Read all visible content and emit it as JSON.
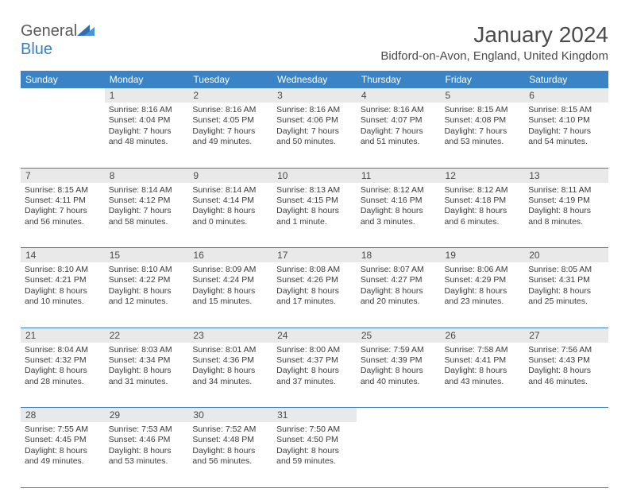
{
  "brand": {
    "name_gray": "General",
    "name_blue": "Blue"
  },
  "title": "January 2024",
  "location": "Bidford-on-Avon, England, United Kingdom",
  "colors": {
    "header_bg": "#3a84c6",
    "header_text": "#ffffff",
    "daynum_bg": "#e9e9e9",
    "border": "#3a7fb8",
    "text": "#3a3a3a",
    "logo_gray": "#5a5a5a",
    "logo_blue": "#3a7fc4"
  },
  "dow": [
    "Sunday",
    "Monday",
    "Tuesday",
    "Wednesday",
    "Thursday",
    "Friday",
    "Saturday"
  ],
  "weeks": [
    [
      {
        "num": "",
        "lines": []
      },
      {
        "num": "1",
        "lines": [
          "Sunrise: 8:16 AM",
          "Sunset: 4:04 PM",
          "Daylight: 7 hours",
          "and 48 minutes."
        ]
      },
      {
        "num": "2",
        "lines": [
          "Sunrise: 8:16 AM",
          "Sunset: 4:05 PM",
          "Daylight: 7 hours",
          "and 49 minutes."
        ]
      },
      {
        "num": "3",
        "lines": [
          "Sunrise: 8:16 AM",
          "Sunset: 4:06 PM",
          "Daylight: 7 hours",
          "and 50 minutes."
        ]
      },
      {
        "num": "4",
        "lines": [
          "Sunrise: 8:16 AM",
          "Sunset: 4:07 PM",
          "Daylight: 7 hours",
          "and 51 minutes."
        ]
      },
      {
        "num": "5",
        "lines": [
          "Sunrise: 8:15 AM",
          "Sunset: 4:08 PM",
          "Daylight: 7 hours",
          "and 53 minutes."
        ]
      },
      {
        "num": "6",
        "lines": [
          "Sunrise: 8:15 AM",
          "Sunset: 4:10 PM",
          "Daylight: 7 hours",
          "and 54 minutes."
        ]
      }
    ],
    [
      {
        "num": "7",
        "lines": [
          "Sunrise: 8:15 AM",
          "Sunset: 4:11 PM",
          "Daylight: 7 hours",
          "and 56 minutes."
        ]
      },
      {
        "num": "8",
        "lines": [
          "Sunrise: 8:14 AM",
          "Sunset: 4:12 PM",
          "Daylight: 7 hours",
          "and 58 minutes."
        ]
      },
      {
        "num": "9",
        "lines": [
          "Sunrise: 8:14 AM",
          "Sunset: 4:14 PM",
          "Daylight: 8 hours",
          "and 0 minutes."
        ]
      },
      {
        "num": "10",
        "lines": [
          "Sunrise: 8:13 AM",
          "Sunset: 4:15 PM",
          "Daylight: 8 hours",
          "and 1 minute."
        ]
      },
      {
        "num": "11",
        "lines": [
          "Sunrise: 8:12 AM",
          "Sunset: 4:16 PM",
          "Daylight: 8 hours",
          "and 3 minutes."
        ]
      },
      {
        "num": "12",
        "lines": [
          "Sunrise: 8:12 AM",
          "Sunset: 4:18 PM",
          "Daylight: 8 hours",
          "and 6 minutes."
        ]
      },
      {
        "num": "13",
        "lines": [
          "Sunrise: 8:11 AM",
          "Sunset: 4:19 PM",
          "Daylight: 8 hours",
          "and 8 minutes."
        ]
      }
    ],
    [
      {
        "num": "14",
        "lines": [
          "Sunrise: 8:10 AM",
          "Sunset: 4:21 PM",
          "Daylight: 8 hours",
          "and 10 minutes."
        ]
      },
      {
        "num": "15",
        "lines": [
          "Sunrise: 8:10 AM",
          "Sunset: 4:22 PM",
          "Daylight: 8 hours",
          "and 12 minutes."
        ]
      },
      {
        "num": "16",
        "lines": [
          "Sunrise: 8:09 AM",
          "Sunset: 4:24 PM",
          "Daylight: 8 hours",
          "and 15 minutes."
        ]
      },
      {
        "num": "17",
        "lines": [
          "Sunrise: 8:08 AM",
          "Sunset: 4:26 PM",
          "Daylight: 8 hours",
          "and 17 minutes."
        ]
      },
      {
        "num": "18",
        "lines": [
          "Sunrise: 8:07 AM",
          "Sunset: 4:27 PM",
          "Daylight: 8 hours",
          "and 20 minutes."
        ]
      },
      {
        "num": "19",
        "lines": [
          "Sunrise: 8:06 AM",
          "Sunset: 4:29 PM",
          "Daylight: 8 hours",
          "and 23 minutes."
        ]
      },
      {
        "num": "20",
        "lines": [
          "Sunrise: 8:05 AM",
          "Sunset: 4:31 PM",
          "Daylight: 8 hours",
          "and 25 minutes."
        ]
      }
    ],
    [
      {
        "num": "21",
        "lines": [
          "Sunrise: 8:04 AM",
          "Sunset: 4:32 PM",
          "Daylight: 8 hours",
          "and 28 minutes."
        ]
      },
      {
        "num": "22",
        "lines": [
          "Sunrise: 8:03 AM",
          "Sunset: 4:34 PM",
          "Daylight: 8 hours",
          "and 31 minutes."
        ]
      },
      {
        "num": "23",
        "lines": [
          "Sunrise: 8:01 AM",
          "Sunset: 4:36 PM",
          "Daylight: 8 hours",
          "and 34 minutes."
        ]
      },
      {
        "num": "24",
        "lines": [
          "Sunrise: 8:00 AM",
          "Sunset: 4:37 PM",
          "Daylight: 8 hours",
          "and 37 minutes."
        ]
      },
      {
        "num": "25",
        "lines": [
          "Sunrise: 7:59 AM",
          "Sunset: 4:39 PM",
          "Daylight: 8 hours",
          "and 40 minutes."
        ]
      },
      {
        "num": "26",
        "lines": [
          "Sunrise: 7:58 AM",
          "Sunset: 4:41 PM",
          "Daylight: 8 hours",
          "and 43 minutes."
        ]
      },
      {
        "num": "27",
        "lines": [
          "Sunrise: 7:56 AM",
          "Sunset: 4:43 PM",
          "Daylight: 8 hours",
          "and 46 minutes."
        ]
      }
    ],
    [
      {
        "num": "28",
        "lines": [
          "Sunrise: 7:55 AM",
          "Sunset: 4:45 PM",
          "Daylight: 8 hours",
          "and 49 minutes."
        ]
      },
      {
        "num": "29",
        "lines": [
          "Sunrise: 7:53 AM",
          "Sunset: 4:46 PM",
          "Daylight: 8 hours",
          "and 53 minutes."
        ]
      },
      {
        "num": "30",
        "lines": [
          "Sunrise: 7:52 AM",
          "Sunset: 4:48 PM",
          "Daylight: 8 hours",
          "and 56 minutes."
        ]
      },
      {
        "num": "31",
        "lines": [
          "Sunrise: 7:50 AM",
          "Sunset: 4:50 PM",
          "Daylight: 8 hours",
          "and 59 minutes."
        ]
      },
      {
        "num": "",
        "lines": []
      },
      {
        "num": "",
        "lines": []
      },
      {
        "num": "",
        "lines": []
      }
    ]
  ]
}
